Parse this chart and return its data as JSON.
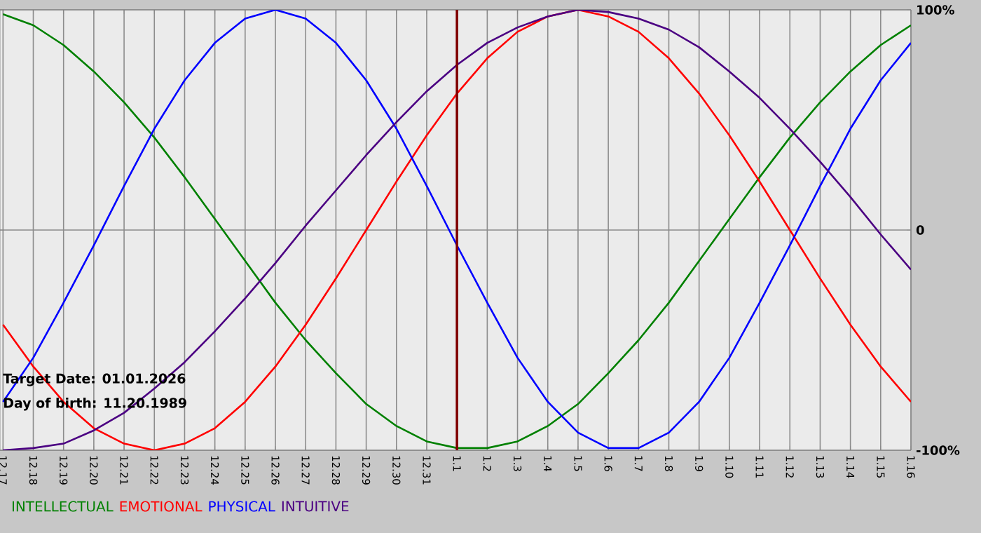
{
  "chart_data": {
    "type": "line",
    "categories": [
      "12.17",
      "12.18",
      "12.19",
      "12.20",
      "12.21",
      "12.22",
      "12.23",
      "12.24",
      "12.25",
      "12.26",
      "12.27",
      "12.28",
      "12.29",
      "12.30",
      "12.31",
      "1.1",
      "1.2",
      "1.3",
      "1.4",
      "1.5",
      "1.6",
      "1.7",
      "1.8",
      "1.9",
      "1.10",
      "1.11",
      "1.12",
      "1.13",
      "1.14",
      "1.15",
      "1.16"
    ],
    "series": [
      {
        "name": "INTELLECTUAL",
        "color": "#008000",
        "values": [
          98,
          93,
          84,
          72,
          58,
          42,
          24,
          5,
          -14,
          -33,
          -50,
          -65,
          -79,
          -89,
          -96,
          -99,
          -99,
          -96,
          -89,
          -79,
          -65,
          -50,
          -33,
          -14,
          5,
          24,
          42,
          58,
          72,
          84,
          93
        ]
      },
      {
        "name": "EMOTIONAL",
        "color": "#ff0000",
        "values": [
          -43,
          -62,
          -78,
          -90,
          -97,
          -100,
          -97,
          -90,
          -78,
          -62,
          -43,
          -22,
          0,
          22,
          43,
          62,
          78,
          90,
          97,
          100,
          97,
          90,
          78,
          62,
          43,
          22,
          0,
          -22,
          -43,
          -62,
          -78
        ]
      },
      {
        "name": "PHYSICAL",
        "color": "#0000ff",
        "values": [
          -78,
          -58,
          -33,
          -7,
          20,
          46,
          68,
          85,
          96,
          100,
          96,
          85,
          68,
          46,
          20,
          -7,
          -33,
          -58,
          -78,
          -92,
          -99,
          -99,
          -92,
          -78,
          -58,
          -33,
          -7,
          20,
          46,
          68,
          85
        ]
      },
      {
        "name": "INTUITIVE",
        "color": "#4b0082",
        "values": [
          -100,
          -99,
          -97,
          -91,
          -83,
          -72,
          -60,
          -46,
          -31,
          -15,
          2,
          18,
          34,
          49,
          63,
          75,
          85,
          92,
          97,
          100,
          99,
          96,
          91,
          83,
          72,
          60,
          46,
          31,
          15,
          -2,
          -18
        ]
      }
    ],
    "ylim": [
      -100,
      100
    ],
    "yticks": [
      {
        "value": -100,
        "label": "-100%"
      },
      0,
      {
        "value": 100,
        "label": "100%"
      }
    ],
    "grid": true,
    "legend": "bottom left",
    "marker": "none",
    "line_style": "solid",
    "ref_lines": [
      {
        "axis": "x",
        "value": "1.1",
        "color": "#800000"
      }
    ],
    "annotations": [
      "Target Date: 01.01.2026",
      "Day of birth: 11.20.1989"
    ]
  }
}
